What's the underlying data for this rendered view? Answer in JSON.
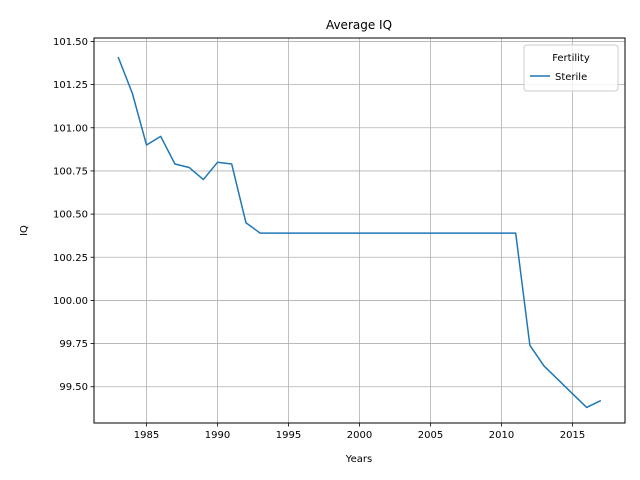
{
  "chart_data": {
    "type": "line",
    "title": "Average IQ",
    "xlabel": "Years",
    "ylabel": "IQ",
    "xlim": [
      1981.3,
      2018.7
    ],
    "ylim": [
      99.29,
      101.52
    ],
    "xticks": [
      1985,
      1990,
      1995,
      2000,
      2005,
      2010,
      2015
    ],
    "xtick_labels": [
      "1985",
      "1990",
      "1995",
      "2000",
      "2005",
      "2010",
      "2015"
    ],
    "yticks": [
      99.5,
      99.75,
      100.0,
      100.25,
      100.5,
      100.75,
      101.0,
      101.25,
      101.5
    ],
    "ytick_labels": [
      "99.50",
      "99.75",
      "100.00",
      "100.25",
      "100.50",
      "100.75",
      "101.00",
      "101.25",
      "101.50"
    ],
    "grid": true,
    "legend": {
      "title": "Fertility",
      "placement": "top-right"
    },
    "series": [
      {
        "name": "Sterile",
        "color": "#1f77b4",
        "x": [
          1983,
          1984,
          1985,
          1986,
          1987,
          1988,
          1989,
          1990,
          1991,
          1992,
          1993,
          1994,
          1995,
          1996,
          1997,
          1998,
          1999,
          2000,
          2001,
          2002,
          2003,
          2004,
          2005,
          2006,
          2007,
          2008,
          2009,
          2010,
          2011,
          2012,
          2013,
          2014,
          2015,
          2016,
          2017
        ],
        "y": [
          101.41,
          101.2,
          100.9,
          100.95,
          100.79,
          100.77,
          100.7,
          100.8,
          100.79,
          100.45,
          100.39,
          100.39,
          100.39,
          100.39,
          100.39,
          100.39,
          100.39,
          100.39,
          100.39,
          100.39,
          100.39,
          100.39,
          100.39,
          100.39,
          100.39,
          100.39,
          100.39,
          100.39,
          100.39,
          99.74,
          99.62,
          99.54,
          99.46,
          99.38,
          99.42
        ]
      }
    ]
  }
}
